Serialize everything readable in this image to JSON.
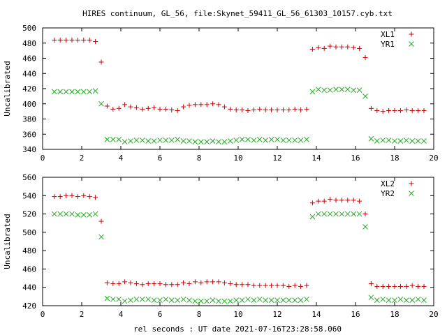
{
  "title": "HIRES continuum, GL_56, file:Skynet_59411_GL_56_61303_10157.cyb.txt",
  "xlabel": "rel seconds : UT date 2021-07-16T23:28:58.060",
  "colors": {
    "red": "#cc0000",
    "green": "#22aa22"
  },
  "chart_data": [
    {
      "type": "scatter",
      "ylabel": "Uncalibrated",
      "xlim": [
        0,
        20
      ],
      "ylim": [
        340,
        500
      ],
      "xticks": [
        "0",
        "2",
        "4",
        "6",
        "8",
        "10",
        "12",
        "14",
        "16",
        "18",
        "20"
      ],
      "yticks": [
        "340",
        "360",
        "380",
        "400",
        "420",
        "440",
        "460",
        "480",
        "500"
      ],
      "legend_position": "top-right",
      "series": [
        {
          "name": "XL1",
          "marker": "plus",
          "color": "#cc0000",
          "x": [
            0.6,
            0.9,
            1.2,
            1.5,
            1.8,
            2.1,
            2.4,
            2.7,
            3.0,
            3.3,
            3.6,
            3.9,
            4.2,
            4.5,
            4.8,
            5.1,
            5.4,
            5.7,
            6.0,
            6.3,
            6.6,
            6.9,
            7.2,
            7.5,
            7.8,
            8.1,
            8.4,
            8.7,
            9.0,
            9.3,
            9.6,
            9.9,
            10.2,
            10.5,
            10.8,
            11.1,
            11.4,
            11.7,
            12.0,
            12.3,
            12.6,
            12.9,
            13.2,
            13.5,
            13.8,
            14.1,
            14.4,
            14.7,
            15.0,
            15.3,
            15.6,
            15.9,
            16.2,
            16.5,
            16.8,
            17.1,
            17.4,
            17.7,
            18.0,
            18.3,
            18.6,
            18.9,
            19.2,
            19.5
          ],
          "y": [
            484,
            484,
            484,
            484,
            484,
            484,
            484,
            482,
            455,
            397,
            393,
            394,
            399,
            396,
            395,
            393,
            394,
            395,
            393,
            393,
            392,
            391,
            396,
            398,
            399,
            399,
            399,
            400,
            399,
            396,
            393,
            392,
            392,
            391,
            392,
            393,
            392,
            392,
            392,
            392,
            392,
            393,
            392,
            393,
            472,
            474,
            473,
            476,
            475,
            475,
            475,
            474,
            473,
            461,
            394,
            391,
            390,
            391,
            391,
            391,
            392,
            391,
            391,
            391
          ]
        },
        {
          "name": "YR1",
          "marker": "cross",
          "color": "#22aa22",
          "x": [
            0.6,
            0.9,
            1.2,
            1.5,
            1.8,
            2.1,
            2.4,
            2.7,
            3.0,
            3.3,
            3.6,
            3.9,
            4.2,
            4.5,
            4.8,
            5.1,
            5.4,
            5.7,
            6.0,
            6.3,
            6.6,
            6.9,
            7.2,
            7.5,
            7.8,
            8.1,
            8.4,
            8.7,
            9.0,
            9.3,
            9.6,
            9.9,
            10.2,
            10.5,
            10.8,
            11.1,
            11.4,
            11.7,
            12.0,
            12.3,
            12.6,
            12.9,
            13.2,
            13.5,
            13.8,
            14.1,
            14.4,
            14.7,
            15.0,
            15.3,
            15.6,
            15.9,
            16.2,
            16.5,
            16.8,
            17.1,
            17.4,
            17.7,
            18.0,
            18.3,
            18.6,
            18.9,
            19.2,
            19.5
          ],
          "y": [
            416,
            416,
            416,
            416,
            416,
            416,
            416,
            417,
            400,
            353,
            353,
            353,
            350,
            351,
            352,
            352,
            351,
            351,
            352,
            352,
            352,
            353,
            351,
            351,
            350,
            350,
            350,
            351,
            350,
            350,
            351,
            352,
            353,
            353,
            352,
            353,
            352,
            353,
            353,
            352,
            352,
            352,
            352,
            353,
            416,
            419,
            418,
            418,
            419,
            419,
            419,
            418,
            418,
            410,
            354,
            351,
            352,
            352,
            351,
            351,
            352,
            351,
            351,
            351
          ]
        }
      ]
    },
    {
      "type": "scatter",
      "ylabel": "Uncalibrated",
      "xlim": [
        0,
        20
      ],
      "ylim": [
        420,
        560
      ],
      "xticks": [
        "0",
        "2",
        "4",
        "6",
        "8",
        "10",
        "12",
        "14",
        "16",
        "18",
        "20"
      ],
      "yticks": [
        "420",
        "440",
        "460",
        "480",
        "500",
        "520",
        "540",
        "560"
      ],
      "legend_position": "top-right",
      "series": [
        {
          "name": "XL2",
          "marker": "plus",
          "color": "#cc0000",
          "x": [
            0.6,
            0.9,
            1.2,
            1.5,
            1.8,
            2.1,
            2.4,
            2.7,
            3.0,
            3.3,
            3.6,
            3.9,
            4.2,
            4.5,
            4.8,
            5.1,
            5.4,
            5.7,
            6.0,
            6.3,
            6.6,
            6.9,
            7.2,
            7.5,
            7.8,
            8.1,
            8.4,
            8.7,
            9.0,
            9.3,
            9.6,
            9.9,
            10.2,
            10.5,
            10.8,
            11.1,
            11.4,
            11.7,
            12.0,
            12.3,
            12.6,
            12.9,
            13.2,
            13.5,
            13.8,
            14.1,
            14.4,
            14.7,
            15.0,
            15.3,
            15.6,
            15.9,
            16.2,
            16.5,
            16.8,
            17.1,
            17.4,
            17.7,
            18.0,
            18.3,
            18.6,
            18.9,
            19.2,
            19.5
          ],
          "y": [
            539,
            539,
            540,
            540,
            539,
            540,
            539,
            538,
            512,
            445,
            444,
            444,
            446,
            445,
            444,
            443,
            444,
            444,
            444,
            443,
            443,
            443,
            445,
            444,
            446,
            445,
            446,
            446,
            446,
            445,
            444,
            443,
            443,
            443,
            442,
            442,
            442,
            442,
            442,
            442,
            441,
            442,
            441,
            442,
            532,
            534,
            534,
            536,
            535,
            535,
            535,
            535,
            534,
            520,
            444,
            441,
            441,
            441,
            441,
            441,
            441,
            442,
            441,
            441
          ]
        },
        {
          "name": "YR2",
          "marker": "cross",
          "color": "#22aa22",
          "x": [
            0.6,
            0.9,
            1.2,
            1.5,
            1.8,
            2.1,
            2.4,
            2.7,
            3.0,
            3.3,
            3.6,
            3.9,
            4.2,
            4.5,
            4.8,
            5.1,
            5.4,
            5.7,
            6.0,
            6.3,
            6.6,
            6.9,
            7.2,
            7.5,
            7.8,
            8.1,
            8.4,
            8.7,
            9.0,
            9.3,
            9.6,
            9.9,
            10.2,
            10.5,
            10.8,
            11.1,
            11.4,
            11.7,
            12.0,
            12.3,
            12.6,
            12.9,
            13.2,
            13.5,
            13.8,
            14.1,
            14.4,
            14.7,
            15.0,
            15.3,
            15.6,
            15.9,
            16.2,
            16.5,
            16.8,
            17.1,
            17.4,
            17.7,
            18.0,
            18.3,
            18.6,
            18.9,
            19.2,
            19.5
          ],
          "y": [
            520,
            520,
            520,
            520,
            519,
            519,
            519,
            520,
            495,
            428,
            427,
            427,
            425,
            426,
            427,
            427,
            427,
            426,
            426,
            427,
            426,
            426,
            427,
            426,
            425,
            425,
            425,
            426,
            425,
            425,
            425,
            426,
            426,
            427,
            426,
            427,
            426,
            426,
            426,
            426,
            426,
            426,
            426,
            427,
            517,
            520,
            520,
            520,
            520,
            520,
            520,
            520,
            520,
            506,
            429,
            426,
            427,
            426,
            426,
            427,
            426,
            426,
            427,
            426
          ]
        }
      ]
    }
  ]
}
